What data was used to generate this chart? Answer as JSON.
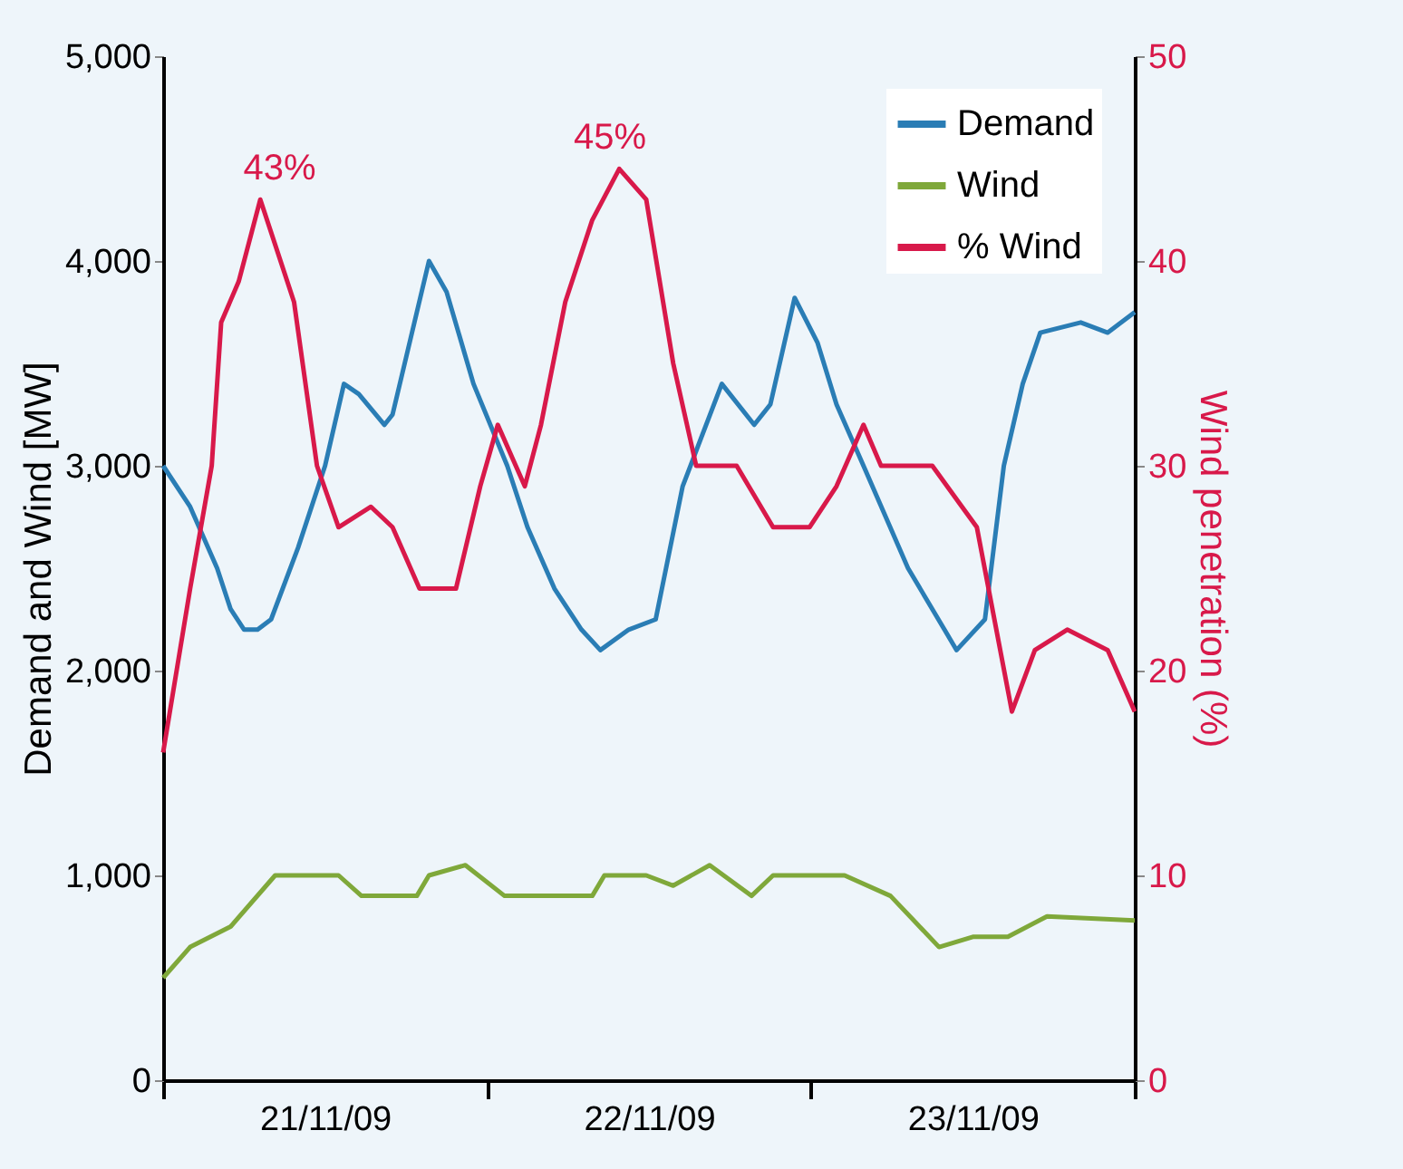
{
  "chart_data": {
    "type": "line",
    "ylabel": "Demand and Wind [MW]",
    "y2label": "Wind penetration (%)",
    "xlim": [
      "--11-21T00:00",
      "--11-24T00:00"
    ],
    "xticks": [
      {
        "value": "--11-21T00:00",
        "label": null
      },
      {
        "value": "--11-21T12:00",
        "label": "21/11/09"
      },
      {
        "value": "--11-22T00:00",
        "label": null
      },
      {
        "value": "--11-22T12:00",
        "label": "22/11/09"
      },
      {
        "value": "--11-23T00:00",
        "label": null
      },
      {
        "value": "--11-23T12:00",
        "label": "23/11/09"
      },
      {
        "value": "--11-24T00:00",
        "label": null
      }
    ],
    "ylim": [
      0,
      5000
    ],
    "yticks": [
      0,
      {
        "value": 1000,
        "label": "1,000"
      },
      {
        "value": 2000,
        "label": "2,000"
      },
      {
        "value": 3000,
        "label": "3,000"
      },
      {
        "value": 4000,
        "label": "4,000"
      },
      {
        "value": 5000,
        "label": "5,000"
      }
    ],
    "y2lim": [
      0,
      50
    ],
    "y2ticks": [
      0,
      10,
      20,
      30,
      40,
      50
    ],
    "legend": "top right",
    "line_style": "solid",
    "annotations": [
      "43%",
      "45%"
    ],
    "series": [
      {
        "name": "Demand",
        "color": "#2a7db5",
        "x": [
          "--11-21T00:00",
          "--11-21T02:00",
          "--11-21T04:00",
          "--11-21T05:00",
          "--11-21T06:00",
          "--11-21T07:00",
          "--11-21T08:00",
          "--11-21T10:00",
          "--11-21T12:00",
          "--11-21T13:24",
          "--11-21T14:30",
          "--11-21T16:24",
          "--11-21T17:00",
          "--11-21T19:42",
          "--11-21T21:00",
          "--11-21T23:00",
          "--11-22T01:30",
          "--11-22T03:00",
          "--11-22T05:00",
          "--11-22T07:00",
          "--11-22T08:24",
          "--11-22T10:30",
          "--11-22T12:30",
          "--11-22T14:30",
          "--11-22T17:24",
          "--11-22T19:48",
          "--11-22T21:00",
          "--11-22T22:48",
          "--11-23T00:30",
          "--11-23T01:54",
          "--11-23T03:54",
          "--11-23T07:12",
          "--11-23T09:54",
          "--11-23T10:48",
          "--11-23T12:54",
          "--11-23T14:18",
          "--11-23T15:42",
          "--11-23T17:00",
          "--11-23T20:00",
          "--11-23T22:00",
          "--11-24T00:00"
        ],
        "values": [
          3000,
          2800,
          2500,
          2300,
          2200,
          2200,
          2250,
          2600,
          3000,
          3400,
          3350,
          3200,
          3250,
          4000,
          3850,
          3400,
          3000,
          2700,
          2400,
          2200,
          2100,
          2200,
          2250,
          2900,
          3400,
          3200,
          3300,
          3820,
          3600,
          3300,
          3000,
          2500,
          2200,
          2100,
          2250,
          3000,
          3400,
          3650,
          3700,
          3650,
          3750
        ]
      },
      {
        "name": "Wind",
        "color": "#7fa83a",
        "x": [
          "--11-21T00:00",
          "--11-21T02:00",
          "--11-21T05:00",
          "--11-21T08:18",
          "--11-21T13:00",
          "--11-21T14:42",
          "--11-21T18:48",
          "--11-21T19:42",
          "--11-21T22:24",
          "--11-22T01:18",
          "--11-22T07:48",
          "--11-22T08:42",
          "--11-22T11:48",
          "--11-22T13:48",
          "--11-22T16:30",
          "--11-22T19:36",
          "--11-22T21:12",
          "--11-23T02:30",
          "--11-23T05:54",
          "--11-23T09:30",
          "--11-23T12:00",
          "--11-23T14:36",
          "--11-23T17:30",
          "--11-24T00:00"
        ],
        "values": [
          500,
          650,
          750,
          1000,
          1000,
          900,
          900,
          1000,
          1050,
          900,
          900,
          1000,
          1000,
          950,
          1050,
          900,
          1000,
          1000,
          900,
          650,
          700,
          700,
          800,
          780
        ]
      },
      {
        "name": "% Wind",
        "color": "#d8194a",
        "axis": "y2",
        "x": [
          "--11-21T00:00",
          "--11-21T02:00",
          "--11-21T03:36",
          "--11-21T04:18",
          "--11-21T05:36",
          "--11-21T07:12",
          "--11-21T09:42",
          "--11-21T11:24",
          "--11-21T13:00",
          "--11-21T15:24",
          "--11-21T17:00",
          "--11-21T19:00",
          "--11-21T21:42",
          "--11-21T23:30",
          "--11-22T00:48",
          "--11-22T02:48",
          "--11-22T04:00",
          "--11-22T05:48",
          "--11-22T07:48",
          "--11-22T09:48",
          "--11-22T11:48",
          "--11-22T13:48",
          "--11-22T15:30",
          "--11-22T18:30",
          "--11-22T21:12",
          "--11-22T23:54",
          "--11-23T01:54",
          "--11-23T03:54",
          "--11-23T05:12",
          "--11-23T09:00",
          "--11-23T11:12",
          "--11-23T12:18",
          "--11-23T14:54",
          "--11-23T16:36",
          "--11-23T19:00",
          "--11-23T22:00",
          "--11-24T00:00"
        ],
        "values": [
          16,
          24,
          30,
          37,
          39,
          43,
          38,
          30,
          27,
          28,
          27,
          24,
          24,
          29,
          32,
          29,
          32,
          38,
          42,
          44.5,
          43,
          35,
          30,
          30,
          27,
          27,
          29,
          32,
          30,
          30,
          28,
          27,
          18,
          21,
          22,
          21,
          18
        ]
      }
    ]
  }
}
